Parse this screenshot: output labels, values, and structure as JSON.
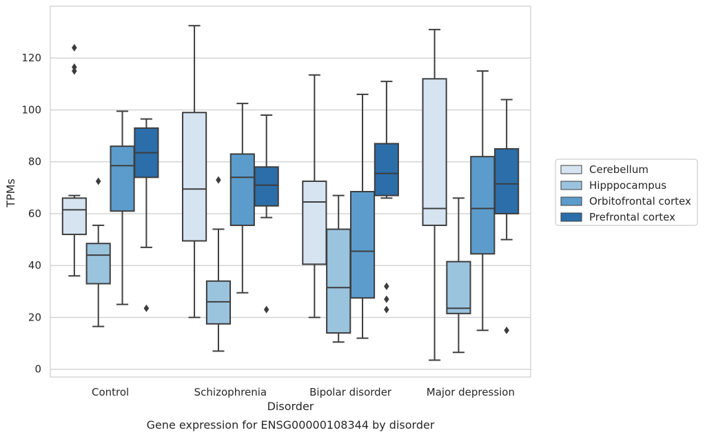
{
  "chart_data": {
    "type": "boxplot",
    "caption": "Gene expression for ENSG00000108344 by disorder",
    "xlabel": "Disorder",
    "ylabel": "TPMs",
    "ylim": [
      -3,
      140
    ],
    "yticks": [
      0,
      20,
      40,
      60,
      80,
      100,
      120
    ],
    "grid": "horizontal",
    "legend_position": "right",
    "categories": [
      "Control",
      "Schizophrenia",
      "Bipolar disorder",
      "Major depression"
    ],
    "series": [
      {
        "name": "Cerebellum",
        "color": "#d6e4f1",
        "boxes": [
          {
            "whislo": 36,
            "q1": 52,
            "med": 61.5,
            "q3": 66,
            "whishi": 67,
            "fliers": [
              115,
              116.5,
              124
            ]
          },
          {
            "whislo": 20,
            "q1": 49.5,
            "med": 69.5,
            "q3": 99,
            "whishi": 132.5,
            "fliers": []
          },
          {
            "whislo": 20,
            "q1": 40.5,
            "med": 64.5,
            "q3": 72.5,
            "whishi": 113.5,
            "fliers": []
          },
          {
            "whislo": 3.5,
            "q1": 55.5,
            "med": 62,
            "q3": 112,
            "whishi": 131,
            "fliers": []
          }
        ]
      },
      {
        "name": "Hipppocampus",
        "color": "#9ac3de",
        "boxes": [
          {
            "whislo": 16.5,
            "q1": 33,
            "med": 44,
            "q3": 48.5,
            "whishi": 55.5,
            "fliers": [
              72.5
            ]
          },
          {
            "whislo": 7,
            "q1": 17.5,
            "med": 26,
            "q3": 34,
            "whishi": 54,
            "fliers": [
              73
            ]
          },
          {
            "whislo": 10.5,
            "q1": 14,
            "med": 31.5,
            "q3": 54,
            "whishi": 67,
            "fliers": []
          },
          {
            "whislo": 6.5,
            "q1": 21.5,
            "med": 23.5,
            "q3": 41.5,
            "whishi": 66,
            "fliers": []
          }
        ]
      },
      {
        "name": "Orbitofrontal cortex",
        "color": "#5c9ccc",
        "boxes": [
          {
            "whislo": 25,
            "q1": 61,
            "med": 78.5,
            "q3": 86,
            "whishi": 99.5,
            "fliers": []
          },
          {
            "whislo": 29.5,
            "q1": 55.5,
            "med": 74,
            "q3": 83,
            "whishi": 102.5,
            "fliers": []
          },
          {
            "whislo": 12,
            "q1": 27.5,
            "med": 45.5,
            "q3": 68.5,
            "whishi": 106,
            "fliers": []
          },
          {
            "whislo": 15,
            "q1": 44.5,
            "med": 62,
            "q3": 82,
            "whishi": 115,
            "fliers": []
          }
        ]
      },
      {
        "name": "Prefrontal cortex",
        "color": "#2c6ea9",
        "boxes": [
          {
            "whislo": 47,
            "q1": 74,
            "med": 83.5,
            "q3": 93,
            "whishi": 96.5,
            "fliers": [
              23.5
            ]
          },
          {
            "whislo": 58.5,
            "q1": 63,
            "med": 71,
            "q3": 78,
            "whishi": 98,
            "fliers": [
              23
            ]
          },
          {
            "whislo": 66,
            "q1": 67,
            "med": 75.5,
            "q3": 87,
            "whishi": 111,
            "fliers": [
              23,
              27,
              32
            ]
          },
          {
            "whislo": 50,
            "q1": 60,
            "med": 71.5,
            "q3": 85,
            "whishi": 104,
            "fliers": [
              15
            ]
          }
        ]
      }
    ]
  }
}
